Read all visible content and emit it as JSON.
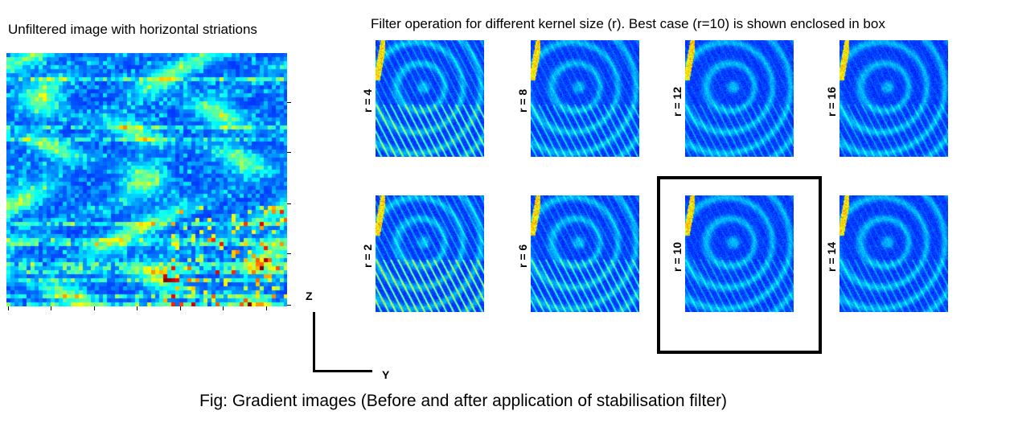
{
  "left_title": "Unfiltered image with horizontal striations",
  "right_title": "Filter operation for different kernel size (r). Best case (r=10) is shown enclosed in box",
  "caption": "Fig:   Gradient images (Before and after application of stabilisation filter)",
  "axis": {
    "z_label": "Z",
    "y_label": "Y"
  },
  "panels": [
    {
      "label": "r = 4",
      "r": 4,
      "best": false
    },
    {
      "label": "r = 8",
      "r": 8,
      "best": false
    },
    {
      "label": "r = 12",
      "r": 12,
      "best": false
    },
    {
      "label": "r = 16",
      "r": 16,
      "best": false
    },
    {
      "label": "r = 2",
      "r": 2,
      "best": false
    },
    {
      "label": "r = 6",
      "r": 6,
      "best": false
    },
    {
      "label": "r = 10",
      "r": 10,
      "best": true
    },
    {
      "label": "r = 14",
      "r": 14,
      "best": false
    }
  ],
  "colors": {
    "colormap": "jet",
    "background": "#ffffff",
    "box": "#000000"
  }
}
